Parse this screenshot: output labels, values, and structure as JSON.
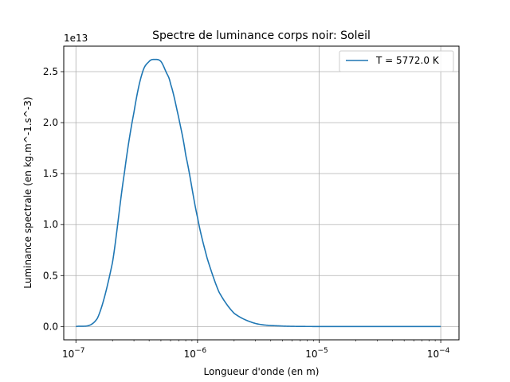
{
  "chart_data": {
    "type": "line",
    "title": "Spectre de luminance corps noir: Soleil",
    "xlabel": "Longueur d'onde (en m)",
    "ylabel": "Luminance spectrale (en kg.m^-1.s^-3)",
    "x_scale": "log",
    "xlim": [
      1e-07,
      0.0001
    ],
    "ylim": [
      0,
      2.75
    ],
    "y_multiplier": "1e13",
    "grid": true,
    "legend_position": "top-right",
    "x_ticks": [
      {
        "value": 1e-07,
        "base": "10",
        "exp": "−7"
      },
      {
        "value": 1e-06,
        "base": "10",
        "exp": "−6"
      },
      {
        "value": 1e-05,
        "base": "10",
        "exp": "−5"
      },
      {
        "value": 0.0001,
        "base": "10",
        "exp": "−4"
      }
    ],
    "y_ticks": [
      "0.0",
      "0.5",
      "1.0",
      "1.5",
      "2.0",
      "2.5"
    ],
    "series": [
      {
        "name": "T = 5772.0 K",
        "color": "#1f77b4",
        "x": [
          1e-07,
          1.5e-07,
          2e-07,
          2.5e-07,
          3e-07,
          3.5e-07,
          4e-07,
          4.5e-07,
          5e-07,
          5.5e-07,
          6e-07,
          7e-07,
          8e-07,
          1e-06,
          1.2e-06,
          1.5e-06,
          2e-06,
          3e-06,
          5e-06,
          1e-05,
          3e-05,
          0.0001
        ],
        "y": [
          0.0,
          0.08,
          0.63,
          1.5,
          2.1,
          2.48,
          2.6,
          2.62,
          2.6,
          2.5,
          2.38,
          2.05,
          1.68,
          1.07,
          0.67,
          0.34,
          0.13,
          0.03,
          0.005,
          0.0003,
          0.0,
          0.0
        ]
      }
    ]
  }
}
